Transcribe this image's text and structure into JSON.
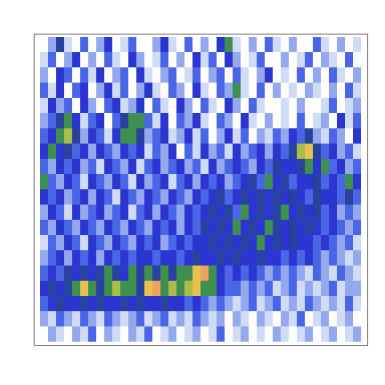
{
  "chart_data": {
    "type": "heatmap",
    "tick_labels": false,
    "zlim": [
      0,
      9
    ],
    "z": [
      [
        0,
        2,
        5,
        1,
        0,
        3,
        0,
        2,
        4,
        0,
        1,
        3,
        0,
        0,
        2,
        4,
        1,
        0,
        3,
        0,
        2,
        0,
        4,
        6,
        1,
        0,
        2,
        0,
        3,
        1,
        0,
        2,
        0,
        0,
        3,
        1,
        0,
        2,
        0,
        1
      ],
      [
        1,
        3,
        0,
        2,
        4,
        0,
        2,
        0,
        3,
        1,
        0,
        4,
        2,
        0,
        1,
        3,
        0,
        2,
        0,
        4,
        1,
        3,
        0,
        4,
        2,
        0,
        1,
        3,
        0,
        0,
        2,
        0,
        1,
        3,
        0,
        2,
        1,
        0,
        3,
        0
      ],
      [
        2,
        0,
        4,
        3,
        0,
        3,
        1,
        4,
        0,
        2,
        3,
        0,
        4,
        1,
        0,
        2,
        3,
        0,
        1,
        3,
        0,
        2,
        3,
        0,
        3,
        1,
        0,
        2,
        4,
        0,
        1,
        0,
        3,
        0,
        2,
        0,
        3,
        1,
        0,
        2
      ],
      [
        3,
        1,
        4,
        0,
        3,
        4,
        0,
        2,
        4,
        1,
        3,
        0,
        2,
        4,
        1,
        0,
        3,
        2,
        0,
        4,
        1,
        0,
        3,
        2,
        6,
        1,
        0,
        3,
        0,
        2,
        0,
        1,
        0,
        2,
        1,
        0,
        2,
        0,
        3,
        1
      ],
      [
        1,
        4,
        2,
        3,
        0,
        4,
        2,
        0,
        3,
        4,
        1,
        2,
        4,
        0,
        3,
        1,
        0,
        4,
        2,
        0,
        3,
        1,
        0,
        4,
        2,
        0,
        3,
        1,
        0,
        0,
        1,
        0,
        2,
        0,
        0,
        1,
        3,
        0,
        1,
        2
      ],
      [
        2,
        3,
        5,
        6,
        4,
        1,
        3,
        4,
        0,
        3,
        5,
        6,
        6,
        3,
        1,
        4,
        0,
        3,
        2,
        4,
        1,
        0,
        3,
        2,
        0,
        4,
        1,
        0,
        2,
        0,
        1,
        0,
        3,
        0,
        1,
        2,
        0,
        4,
        1,
        3
      ],
      [
        3,
        4,
        6,
        7,
        5,
        2,
        4,
        3,
        1,
        4,
        6,
        6,
        5,
        2,
        3,
        4,
        1,
        2,
        4,
        1,
        3,
        0,
        2,
        4,
        1,
        3,
        0,
        2,
        1,
        3,
        2,
        4,
        3,
        5,
        2,
        1,
        3,
        2,
        0,
        4
      ],
      [
        4,
        6,
        4,
        5,
        3,
        4,
        2,
        4,
        3,
        2,
        4,
        3,
        4,
        1,
        3,
        2,
        4,
        0,
        3,
        1,
        4,
        2,
        3,
        1,
        4,
        2,
        3,
        4,
        2,
        4,
        3,
        5,
        7,
        8,
        5,
        3,
        4,
        2,
        3,
        1
      ],
      [
        3,
        2,
        4,
        3,
        4,
        2,
        3,
        1,
        4,
        3,
        2,
        4,
        1,
        3,
        4,
        2,
        3,
        4,
        2,
        3,
        1,
        4,
        2,
        3,
        4,
        3,
        2,
        4,
        3,
        5,
        4,
        4,
        5,
        6,
        4,
        6,
        3,
        4,
        2,
        3
      ],
      [
        6,
        3,
        2,
        4,
        3,
        1,
        4,
        3,
        2,
        4,
        3,
        1,
        4,
        2,
        3,
        4,
        1,
        3,
        4,
        2,
        4,
        3,
        4,
        2,
        3,
        4,
        5,
        3,
        6,
        4,
        5,
        3,
        4,
        4,
        5,
        3,
        4,
        3,
        6,
        4
      ],
      [
        4,
        3,
        4,
        2,
        3,
        4,
        2,
        4,
        3,
        1,
        4,
        3,
        2,
        4,
        3,
        2,
        4,
        3,
        2,
        4,
        3,
        4,
        5,
        3,
        4,
        5,
        4,
        5,
        4,
        5,
        4,
        5,
        4,
        3,
        5,
        4,
        4,
        3,
        5,
        3
      ],
      [
        2,
        4,
        3,
        1,
        4,
        2,
        3,
        4,
        2,
        3,
        4,
        1,
        3,
        4,
        2,
        4,
        3,
        2,
        4,
        3,
        4,
        5,
        4,
        5,
        3,
        6,
        4,
        5,
        4,
        5,
        6,
        4,
        5,
        4,
        5,
        3,
        4,
        2,
        3,
        2
      ],
      [
        3,
        2,
        4,
        3,
        2,
        4,
        3,
        2,
        4,
        3,
        2,
        4,
        3,
        2,
        4,
        3,
        4,
        2,
        4,
        3,
        5,
        4,
        5,
        4,
        6,
        4,
        5,
        4,
        6,
        5,
        4,
        5,
        4,
        5,
        4,
        3,
        4,
        3,
        2,
        3
      ],
      [
        1,
        3,
        2,
        4,
        3,
        1,
        4,
        3,
        2,
        4,
        3,
        2,
        4,
        3,
        4,
        2,
        3,
        4,
        3,
        4,
        4,
        5,
        4,
        5,
        4,
        5,
        4,
        6,
        4,
        5,
        4,
        5,
        4,
        4,
        3,
        4,
        3,
        2,
        3,
        1
      ],
      [
        2,
        3,
        4,
        2,
        4,
        3,
        4,
        2,
        4,
        3,
        4,
        3,
        4,
        4,
        3,
        4,
        4,
        3,
        4,
        5,
        4,
        4,
        5,
        4,
        5,
        4,
        4,
        5,
        4,
        4,
        3,
        4,
        3,
        4,
        3,
        2,
        3,
        2,
        1,
        2
      ],
      [
        3,
        4,
        3,
        5,
        4,
        5,
        4,
        5,
        6,
        5,
        4,
        6,
        5,
        6,
        5,
        6,
        5,
        6,
        6,
        8,
        9,
        6,
        4,
        3,
        4,
        3,
        4,
        3,
        2,
        3,
        2,
        3,
        2,
        1,
        3,
        2,
        1,
        3,
        2,
        1
      ],
      [
        4,
        5,
        4,
        5,
        6,
        8,
        6,
        5,
        6,
        7,
        6,
        6,
        5,
        8,
        9,
        6,
        7,
        6,
        7,
        8,
        6,
        6,
        4,
        3,
        3,
        2,
        3,
        2,
        3,
        1,
        2,
        3,
        1,
        2,
        1,
        2,
        3,
        1,
        2,
        2
      ],
      [
        3,
        4,
        5,
        4,
        4,
        5,
        4,
        5,
        4,
        4,
        5,
        4,
        5,
        4,
        4,
        5,
        4,
        4,
        3,
        4,
        3,
        2,
        3,
        2,
        1,
        2,
        3,
        1,
        2,
        3,
        1,
        2,
        1,
        3,
        2,
        1,
        2,
        1,
        3,
        1
      ],
      [
        2,
        1,
        3,
        2,
        1,
        3,
        2,
        1,
        3,
        2,
        1,
        2,
        3,
        1,
        2,
        3,
        1,
        2,
        1,
        3,
        2,
        1,
        2,
        0,
        2,
        1,
        0,
        2,
        1,
        0,
        2,
        1,
        3,
        0,
        1,
        2,
        0,
        1,
        2,
        0
      ],
      [
        0,
        2,
        1,
        0,
        2,
        1,
        3,
        0,
        2,
        1,
        0,
        2,
        1,
        3,
        0,
        1,
        2,
        0,
        1,
        2,
        0,
        1,
        3,
        0,
        1,
        2,
        0,
        1,
        0,
        2,
        1,
        0,
        1,
        2,
        0,
        1,
        2,
        0,
        1,
        2
      ]
    ]
  }
}
